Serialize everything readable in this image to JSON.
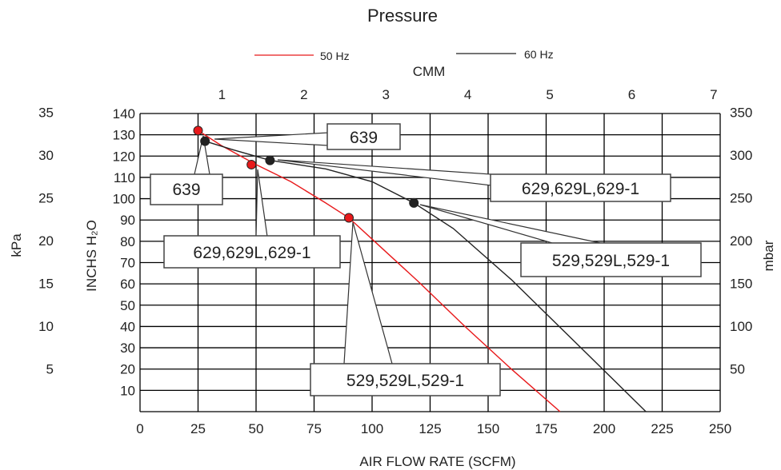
{
  "chart_data": {
    "type": "line",
    "title": "Pressure",
    "xlabel": "AIR FLOW RATE (SCFM)",
    "x2label": "CMM",
    "ylabel": "INCHS H₂O",
    "y2label": "kPa",
    "y3label": "mbar",
    "xlim": [
      0,
      250
    ],
    "ylim": [
      0,
      140
    ],
    "grid": true,
    "legend_position": "top-center",
    "x_ticks": [
      "0",
      "25",
      "50",
      "75",
      "100",
      "125",
      "150",
      "175",
      "200",
      "225",
      "250"
    ],
    "x2_ticks": [
      "1",
      "2",
      "3",
      "4",
      "5",
      "6",
      "7"
    ],
    "y_ticks": [
      "10",
      "20",
      "30",
      "40",
      "50",
      "60",
      "70",
      "80",
      "90",
      "100",
      "110",
      "120",
      "130",
      "140"
    ],
    "kpa_ticks": [
      "5",
      "10",
      "15",
      "20",
      "25",
      "30",
      "35"
    ],
    "mbar_ticks": [
      "50",
      "100",
      "150",
      "200",
      "250",
      "300",
      "350"
    ],
    "series": [
      {
        "name": "50 Hz",
        "color": "#e8191b",
        "x": [
          25,
          35,
          50,
          65,
          80,
          90,
          100,
          120,
          140,
          160,
          181
        ],
        "y": [
          132,
          125,
          116,
          108,
          98,
          91,
          81,
          61,
          40,
          20,
          0
        ],
        "markers": [
          {
            "x": 25,
            "y": 132,
            "label": "639"
          },
          {
            "x": 48,
            "y": 116,
            "label": "629,629L,629-1"
          },
          {
            "x": 90,
            "y": 91,
            "label": "529,529L,529-1"
          }
        ]
      },
      {
        "name": "60 Hz",
        "color": "#222222",
        "x": [
          28,
          40,
          56,
          80,
          100,
          118,
          135,
          160,
          190,
          218
        ],
        "y": [
          127,
          123,
          118,
          114,
          108,
          98,
          86,
          62,
          30,
          0
        ],
        "markers": [
          {
            "x": 28,
            "y": 127,
            "label": "639"
          },
          {
            "x": 56,
            "y": 118,
            "label": "629,629L,629-1"
          },
          {
            "x": 118,
            "y": 98,
            "label": "529,529L,529-1"
          }
        ]
      }
    ]
  }
}
